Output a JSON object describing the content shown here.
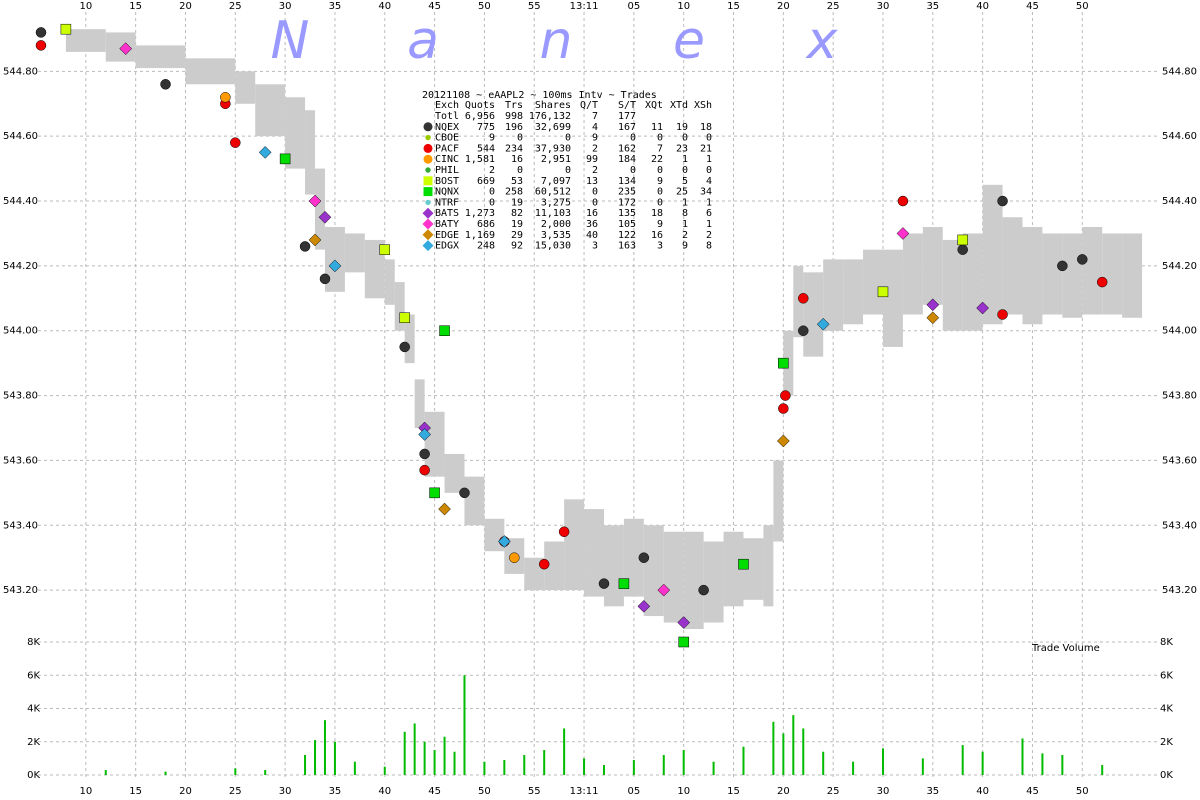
{
  "chart_data": [
    {
      "type": "scatter",
      "title": "20121108 ~ eAAPL2 ~ 100ms Intv ~ Trades",
      "watermark": [
        "N",
        "a",
        "n",
        "e",
        "x"
      ],
      "xlim": [
        5.2,
        117.8
      ],
      "xticks": [
        10,
        15,
        20,
        25,
        30,
        35,
        40,
        45,
        50,
        55,
        {
          "value": 60,
          "label": "13:11"
        },
        {
          "value": 65,
          "label": "05"
        },
        {
          "value": 70,
          "label": "10"
        },
        {
          "value": 75,
          "label": "15"
        },
        {
          "value": 80,
          "label": "20"
        },
        {
          "value": 85,
          "label": "25"
        },
        {
          "value": 90,
          "label": "30"
        },
        {
          "value": 95,
          "label": "35"
        },
        {
          "value": 100,
          "label": "40"
        },
        {
          "value": 105,
          "label": "45"
        },
        {
          "value": 110,
          "label": "50"
        }
      ],
      "ylim": [
        543.04,
        545.02
      ],
      "yticks": [
        {
          "value": 543.2,
          "label": "543.20"
        },
        {
          "value": 543.4,
          "label": "543.40"
        },
        {
          "value": 543.6,
          "label": "543.60"
        },
        {
          "value": 543.8,
          "label": "543.80"
        },
        {
          "value": 544.0,
          "label": "544.00"
        },
        {
          "value": 544.2,
          "label": "544.20"
        },
        {
          "value": 544.4,
          "label": "544.40"
        },
        {
          "value": 544.6,
          "label": "544.60"
        },
        {
          "value": 544.8,
          "label": "544.80"
        }
      ],
      "grid": true,
      "band": {
        "color": "#cccccc",
        "x": [
          8,
          12,
          15,
          20,
          25,
          27,
          30,
          32,
          33,
          34,
          36,
          38,
          40,
          41,
          42,
          43,
          44,
          46,
          48,
          50,
          52,
          54,
          56,
          58,
          60,
          62,
          64,
          66,
          68,
          70,
          72,
          74,
          76,
          78,
          79,
          80,
          81,
          82,
          84,
          86,
          88,
          90,
          92,
          94,
          96,
          98,
          100,
          102,
          104,
          106,
          108,
          110,
          112,
          114
        ],
        "low": [
          544.86,
          544.83,
          544.81,
          544.76,
          544.7,
          544.6,
          544.5,
          544.42,
          544.25,
          544.12,
          544.18,
          544.1,
          544.08,
          544.0,
          543.9,
          543.7,
          543.55,
          543.5,
          543.4,
          543.32,
          543.25,
          543.2,
          543.2,
          543.2,
          543.18,
          543.15,
          543.18,
          543.12,
          543.1,
          543.08,
          543.1,
          543.15,
          543.17,
          543.15,
          543.35,
          543.8,
          543.98,
          543.92,
          544.0,
          544.02,
          544.05,
          543.95,
          544.05,
          544.08,
          544.0,
          544.0,
          544.02,
          544.05,
          544.02,
          544.05,
          544.04,
          544.05,
          544.05,
          544.04
        ],
        "high": [
          544.93,
          544.92,
          544.88,
          544.84,
          544.8,
          544.76,
          544.72,
          544.68,
          544.5,
          544.32,
          544.3,
          544.28,
          544.22,
          544.15,
          544.05,
          543.85,
          543.75,
          543.62,
          543.55,
          543.42,
          543.36,
          543.3,
          543.35,
          543.48,
          543.45,
          543.4,
          543.42,
          543.4,
          543.38,
          543.38,
          543.35,
          543.38,
          543.36,
          543.4,
          543.6,
          544.0,
          544.2,
          544.18,
          544.22,
          544.22,
          544.25,
          544.25,
          544.3,
          544.32,
          544.28,
          544.3,
          544.45,
          544.35,
          544.32,
          544.3,
          544.3,
          544.32,
          544.3,
          544.3
        ]
      },
      "legend_header": [
        "Exch",
        "Quots",
        "Trs",
        "Shares",
        "Q/T",
        "S/T",
        "XQt",
        "XTd",
        "XSh"
      ],
      "legend_rows": [
        {
          "cells": [
            "Totl",
            "6,956",
            "998",
            "176,132",
            "7",
            "177"
          ]
        },
        {
          "color": "#333333",
          "marker": "circle",
          "cells": [
            "NQEX",
            "775",
            "196",
            "32,699",
            "4",
            "167",
            "11",
            "19",
            "18"
          ],
          "x": [
            5.5,
            18,
            32,
            34,
            42,
            44,
            48,
            62,
            66,
            72,
            80,
            82,
            98,
            102,
            108,
            110
          ],
          "values": [
            544.92,
            544.76,
            544.26,
            544.16,
            543.95,
            543.62,
            543.5,
            543.22,
            543.3,
            543.2,
            543.9,
            544.0,
            544.25,
            544.4,
            544.2,
            544.22
          ]
        },
        {
          "color": "#99cc00",
          "marker": "dot",
          "cells": [
            "CBOE",
            "9",
            "0",
            "0",
            "9",
            "0",
            "0",
            "0",
            "0"
          ]
        },
        {
          "color": "#ee0000",
          "marker": "circle",
          "cells": [
            "PACF",
            "544",
            "234",
            "37,930",
            "2",
            "162",
            "7",
            "23",
            "21"
          ],
          "x": [
            5.5,
            24,
            25,
            44,
            52,
            56,
            58,
            80,
            80.2,
            82,
            92,
            102,
            112
          ],
          "values": [
            544.88,
            544.7,
            544.58,
            543.57,
            543.35,
            543.28,
            543.38,
            543.76,
            543.8,
            544.1,
            544.4,
            544.05,
            544.15
          ]
        },
        {
          "color": "#ff9900",
          "marker": "circle",
          "cells": [
            "CINC",
            "1,581",
            "16",
            "2,951",
            "99",
            "184",
            "22",
            "1",
            "1"
          ],
          "x": [
            24,
            53
          ],
          "values": [
            544.72,
            543.3
          ]
        },
        {
          "color": "#33aa33",
          "marker": "dot",
          "cells": [
            "PHIL",
            "2",
            "0",
            "0",
            "2",
            "0",
            "0",
            "0",
            "0"
          ]
        },
        {
          "color": "#ccff00",
          "marker": "square",
          "cells": [
            "BOST",
            "669",
            "53",
            "7,097",
            "13",
            "134",
            "9",
            "5",
            "4"
          ],
          "x": [
            8,
            40,
            42,
            90,
            98
          ],
          "values": [
            544.93,
            544.25,
            544.04,
            544.12,
            544.28
          ]
        },
        {
          "color": "#00dd00",
          "marker": "square",
          "cells": [
            "NQNX",
            "0",
            "258",
            "60,512",
            "0",
            "235",
            "0",
            "25",
            "34"
          ],
          "x": [
            30,
            45,
            46,
            64,
            70,
            76,
            80
          ],
          "values": [
            544.53,
            543.5,
            544.0,
            543.22,
            543.04,
            543.28,
            543.9
          ]
        },
        {
          "color": "#66cccc",
          "marker": "dot",
          "cells": [
            "NTRF",
            "0",
            "19",
            "3,275",
            "0",
            "172",
            "0",
            "1",
            "1"
          ]
        },
        {
          "color": "#9933cc",
          "marker": "diamond",
          "cells": [
            "BATS",
            "1,273",
            "82",
            "11,103",
            "16",
            "135",
            "18",
            "8",
            "6"
          ],
          "x": [
            34,
            44,
            66,
            70,
            95,
            100
          ],
          "values": [
            544.35,
            543.7,
            543.15,
            543.1,
            544.08,
            544.07
          ]
        },
        {
          "color": "#ff33cc",
          "marker": "diamond",
          "cells": [
            "BATY",
            "686",
            "19",
            "2,000",
            "36",
            "105",
            "9",
            "1",
            "1"
          ],
          "x": [
            14,
            33,
            68,
            92
          ],
          "values": [
            544.87,
            544.4,
            543.2,
            544.3
          ]
        },
        {
          "color": "#cc8800",
          "marker": "diamond",
          "cells": [
            "EDGE",
            "1,169",
            "29",
            "3,535",
            "40",
            "122",
            "16",
            "2",
            "2"
          ],
          "x": [
            33,
            46,
            80,
            95
          ],
          "values": [
            544.28,
            543.45,
            543.66,
            544.04
          ]
        },
        {
          "color": "#33aadd",
          "marker": "diamond",
          "cells": [
            "EDGX",
            "248",
            "92",
            "15,030",
            "3",
            "163",
            "3",
            "9",
            "8"
          ],
          "x": [
            28,
            35,
            44,
            52,
            84
          ],
          "values": [
            544.55,
            544.2,
            543.68,
            543.35,
            544.02
          ]
        }
      ]
    },
    {
      "type": "bar",
      "label": "Trade Volume",
      "color": "#00bb00",
      "ylim": [
        0,
        8000
      ],
      "yticks": [
        {
          "value": 0,
          "label": "0K"
        },
        {
          "value": 2000,
          "label": "2K"
        },
        {
          "value": 4000,
          "label": "4K"
        },
        {
          "value": 6000,
          "label": "6K"
        },
        {
          "value": 8000,
          "label": "8K"
        }
      ],
      "x": [
        12,
        18,
        25,
        28,
        32,
        33,
        34,
        35,
        37,
        40,
        42,
        43,
        44,
        45,
        46,
        47,
        48,
        50,
        52,
        54,
        56,
        58,
        60,
        62,
        65,
        68,
        70,
        73,
        76,
        79,
        80,
        81,
        82,
        84,
        87,
        90,
        94,
        98,
        100,
        104,
        106,
        108,
        112
      ],
      "values": [
        300,
        200,
        400,
        300,
        1200,
        2100,
        3300,
        2000,
        800,
        500,
        2600,
        3100,
        2000,
        1500,
        2300,
        1400,
        6000,
        800,
        900,
        1200,
        1500,
        2800,
        1000,
        600,
        900,
        1200,
        1500,
        800,
        1700,
        3200,
        2500,
        3600,
        2800,
        1400,
        800,
        1600,
        1000,
        1800,
        1400,
        2200,
        1300,
        1200,
        600
      ]
    }
  ]
}
